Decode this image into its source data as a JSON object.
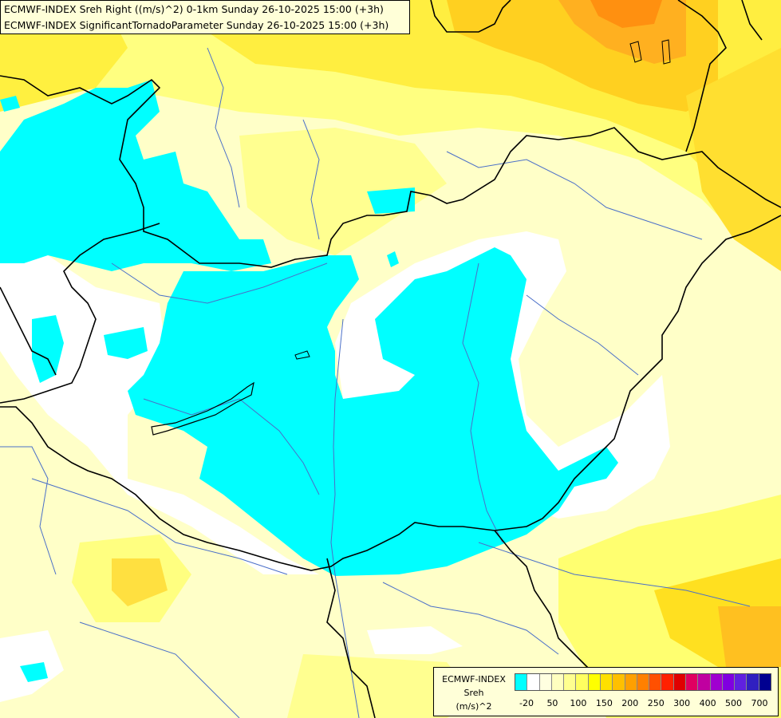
{
  "title": {
    "line1": "ECMWF-INDEX Sreh Right ((m/s)^2) 0-1km Sunday 26-10-2025 15:00 (+3h)",
    "line2": "ECMWF-INDEX SignificantTornadoParameter Sunday 26-10-2025 15:00 (+3h)"
  },
  "legend": {
    "source": "ECMWF-INDEX",
    "variable": "Sreh",
    "unit": "(m/s)^2",
    "colors": [
      "#00ffff",
      "#ffffff",
      "#ffffe0",
      "#ffffc0",
      "#ffff90",
      "#ffff60",
      "#ffff00",
      "#ffe000",
      "#ffc000",
      "#ffa000",
      "#ff8000",
      "#ff5000",
      "#ff2000",
      "#e00000",
      "#e00060",
      "#c000a0",
      "#a000d0",
      "#8000e0",
      "#6020e0",
      "#3020c0",
      "#000090"
    ],
    "ticks": [
      "-20",
      "50",
      "100",
      "150",
      "200",
      "250",
      "300",
      "400",
      "500",
      "700"
    ]
  },
  "colors": {
    "cyan": "#00ffff",
    "white": "#ffffff",
    "pale_yellow": "#ffffc0",
    "yellow": "#ffff60",
    "gold": "#ffe000",
    "orange": "#ffc040",
    "border_line": "#000000",
    "river_line": "#4a6fc8"
  }
}
